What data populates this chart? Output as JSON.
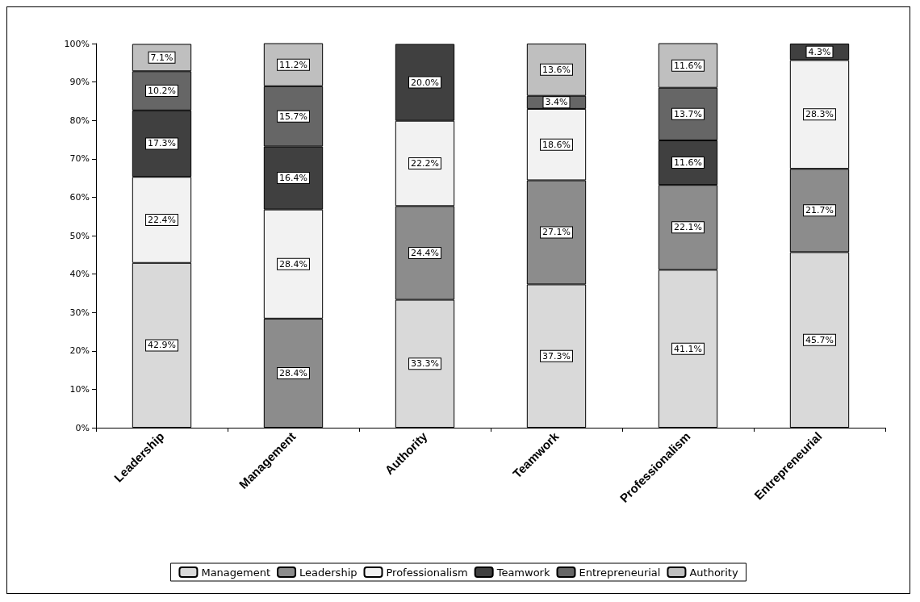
{
  "chart_data": {
    "type": "bar",
    "stacked": true,
    "categories": [
      "Leadership",
      "Management",
      "Authority",
      "Teamwork",
      "Professionalism",
      "Entrepreneurial"
    ],
    "series": [
      {
        "name": "Management",
        "color": "#d9d9d9",
        "values": [
          42.9,
          null,
          33.3,
          37.3,
          41.1,
          45.7
        ],
        "value_labels": [
          "42.9%",
          null,
          "33.3%",
          "37.3%",
          "41.1%",
          "45.7%"
        ]
      },
      {
        "name": "Leadership",
        "color": "#8c8c8c",
        "values": [
          null,
          28.4,
          24.4,
          27.1,
          22.1,
          21.7
        ],
        "value_labels": [
          null,
          "28.4%",
          "24.4%",
          "27.1%",
          "22.1%",
          "21.7%"
        ]
      },
      {
        "name": "Professionalism",
        "color": "#f2f2f2",
        "values": [
          22.4,
          28.4,
          22.2,
          18.6,
          null,
          28.3
        ],
        "value_labels": [
          "22.4%",
          "28.4%",
          "22.2%",
          "18.6%",
          null,
          "28.3%"
        ]
      },
      {
        "name": "Teamwork",
        "color": "#404040",
        "values": [
          17.3,
          16.4,
          20.0,
          null,
          11.6,
          4.3
        ],
        "value_labels": [
          "17.3%",
          "16.4%",
          "20.0%",
          null,
          "11.6%",
          "4.3%"
        ]
      },
      {
        "name": "Entrepreneurial",
        "color": "#666666",
        "values": [
          10.2,
          15.7,
          null,
          3.4,
          13.7,
          null
        ],
        "value_labels": [
          "10.2%",
          "15.7%",
          null,
          "3.4%",
          "13.7%",
          null
        ]
      },
      {
        "name": "Authority",
        "color": "#bfbfbf",
        "values": [
          7.1,
          11.2,
          null,
          13.6,
          11.6,
          null
        ],
        "value_labels": [
          "7.1%",
          "11.2%",
          null,
          "13.6%",
          "11.6%",
          null
        ]
      }
    ],
    "ylim": [
      0,
      100
    ],
    "yticks": [
      {
        "value": 0,
        "label": "0%"
      },
      {
        "value": 10,
        "label": "10%"
      },
      {
        "value": 20,
        "label": "20%"
      },
      {
        "value": 30,
        "label": "30%"
      },
      {
        "value": 40,
        "label": "40%"
      },
      {
        "value": 50,
        "label": "50%"
      },
      {
        "value": 60,
        "label": "60%"
      },
      {
        "value": 70,
        "label": "70%"
      },
      {
        "value": 80,
        "label": "80%"
      },
      {
        "value": 90,
        "label": "90%"
      },
      {
        "value": 100,
        "label": "100%"
      }
    ],
    "grid": false,
    "legend": "bottom"
  }
}
